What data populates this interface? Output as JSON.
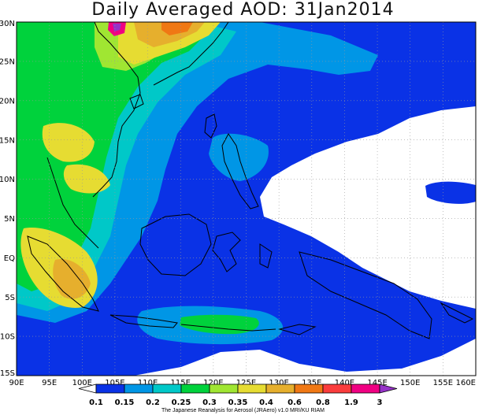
{
  "title": "Daily Averaged AOD: 31Jan2014",
  "map": {
    "lon_range": [
      90,
      160
    ],
    "lat_range": [
      -15,
      30
    ],
    "x_ticks": [
      "90E",
      "95E",
      "100E",
      "105E",
      "110E",
      "115E",
      "120E",
      "125E",
      "130E",
      "135E",
      "140E",
      "145E",
      "150E",
      "155E",
      "160E"
    ],
    "y_ticks": [
      "30N",
      "25N",
      "20N",
      "15N",
      "10N",
      "5N",
      "EQ",
      "5S",
      "10S",
      "15S"
    ],
    "grid": "dotted"
  },
  "colorbar": {
    "labels": [
      "0.1",
      "0.15",
      "0.2",
      "0.25",
      "0.3",
      "0.35",
      "0.4",
      "0.6",
      "0.8",
      "1.9",
      "3"
    ],
    "colors": [
      "#ffffff",
      "#0a32e6",
      "#0096e6",
      "#00c8c8",
      "#00d23c",
      "#a0e632",
      "#e6dc32",
      "#e6af2d",
      "#f07814",
      "#fa3c3c",
      "#f00082",
      "#9632c8"
    ]
  },
  "credit": "The Japanese Reanalysis for Aerosol (JRAero) v1.0 MRI/KU RIAM"
}
